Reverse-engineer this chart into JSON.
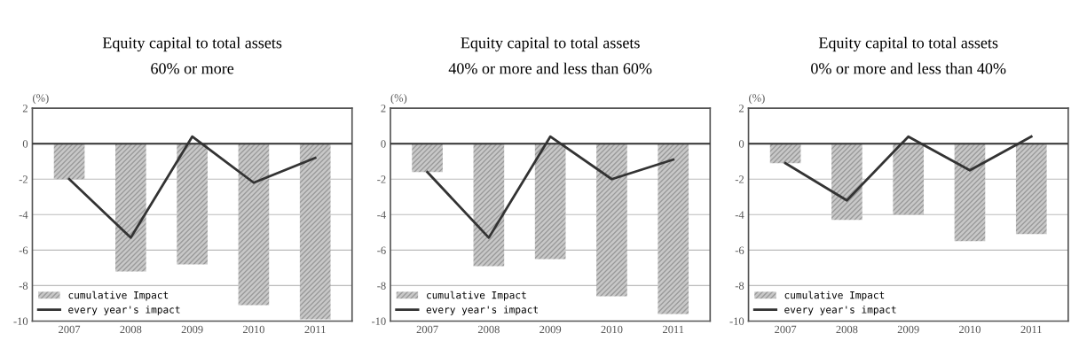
{
  "chart_data": [
    {
      "type": "bar",
      "title": "Equity capital to total assets\n60% or more",
      "ylabel": "(%)",
      "categories": [
        "2007",
        "2008",
        "2009",
        "2010",
        "2011"
      ],
      "series": [
        {
          "name": "cumulative Impact",
          "color": "#c8c8c8",
          "values": [
            -2.0,
            -7.2,
            -6.8,
            -9.1,
            -9.9
          ]
        },
        {
          "name": "every year's impact",
          "type": "line",
          "color": "#333333",
          "values": [
            -2.0,
            -5.3,
            0.4,
            -2.2,
            -0.8
          ]
        }
      ],
      "ylim": [
        -10,
        2
      ],
      "yticks": [
        -10,
        -8,
        -6,
        -4,
        -2,
        0,
        2
      ],
      "grid": "y",
      "legend": "bottom left",
      "marker": "none",
      "line_style": "solid"
    },
    {
      "type": "bar",
      "title": "Equity capital to total assets\n40% or more and less than 60%",
      "ylabel": "(%)",
      "categories": [
        "2007",
        "2008",
        "2009",
        "2010",
        "2011"
      ],
      "series": [
        {
          "name": "cumulative Impact",
          "color": "#c8c8c8",
          "values": [
            -1.6,
            -6.9,
            -6.5,
            -8.6,
            -9.6
          ]
        },
        {
          "name": "every year's impact",
          "type": "line",
          "color": "#333333",
          "values": [
            -1.6,
            -5.3,
            0.4,
            -2.0,
            -0.9
          ]
        }
      ],
      "ylim": [
        -10,
        2
      ],
      "yticks": [
        -10,
        -8,
        -6,
        -4,
        -2,
        0,
        2
      ],
      "grid": "y",
      "legend": "bottom left",
      "marker": "none",
      "line_style": "solid"
    },
    {
      "type": "bar",
      "title": "Equity capital to total assets\n0% or more and less than 40%",
      "ylabel": "(%)",
      "categories": [
        "2007",
        "2008",
        "2009",
        "2010",
        "2011"
      ],
      "series": [
        {
          "name": "cumulative Impact",
          "color": "#c8c8c8",
          "values": [
            -1.1,
            -4.3,
            -4.0,
            -5.5,
            -5.1
          ]
        },
        {
          "name": "every year's impact",
          "type": "line",
          "color": "#333333",
          "values": [
            -1.1,
            -3.2,
            0.4,
            -1.5,
            0.4
          ]
        }
      ],
      "ylim": [
        -10,
        2
      ],
      "yticks": [
        -10,
        -8,
        -6,
        -4,
        -2,
        0,
        2
      ],
      "grid": "y",
      "legend": "bottom left",
      "marker": "none",
      "line_style": "solid"
    }
  ]
}
